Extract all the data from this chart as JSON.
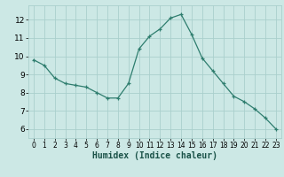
{
  "x": [
    0,
    1,
    2,
    3,
    4,
    5,
    6,
    7,
    8,
    9,
    10,
    11,
    12,
    13,
    14,
    15,
    16,
    17,
    18,
    19,
    20,
    21,
    22,
    23
  ],
  "y": [
    9.8,
    9.5,
    8.8,
    8.5,
    8.4,
    8.3,
    8.0,
    7.7,
    7.7,
    8.5,
    10.4,
    11.1,
    11.5,
    12.1,
    12.3,
    11.2,
    9.9,
    9.2,
    8.5,
    7.8,
    7.5,
    7.1,
    6.6,
    6.0
  ],
  "bg_color": "#cce8e5",
  "grid_color": "#aacfcc",
  "line_color": "#2e7d6e",
  "marker_color": "#2e7d6e",
  "xlabel": "Humidex (Indice chaleur)",
  "ylim": [
    5.5,
    12.8
  ],
  "xlim": [
    -0.5,
    23.5
  ],
  "yticks": [
    6,
    7,
    8,
    9,
    10,
    11,
    12
  ],
  "xticks": [
    0,
    1,
    2,
    3,
    4,
    5,
    6,
    7,
    8,
    9,
    10,
    11,
    12,
    13,
    14,
    15,
    16,
    17,
    18,
    19,
    20,
    21,
    22,
    23
  ],
  "xlabel_fontsize": 7,
  "tick_fontsize": 5.5,
  "ytick_fontsize": 6.5
}
